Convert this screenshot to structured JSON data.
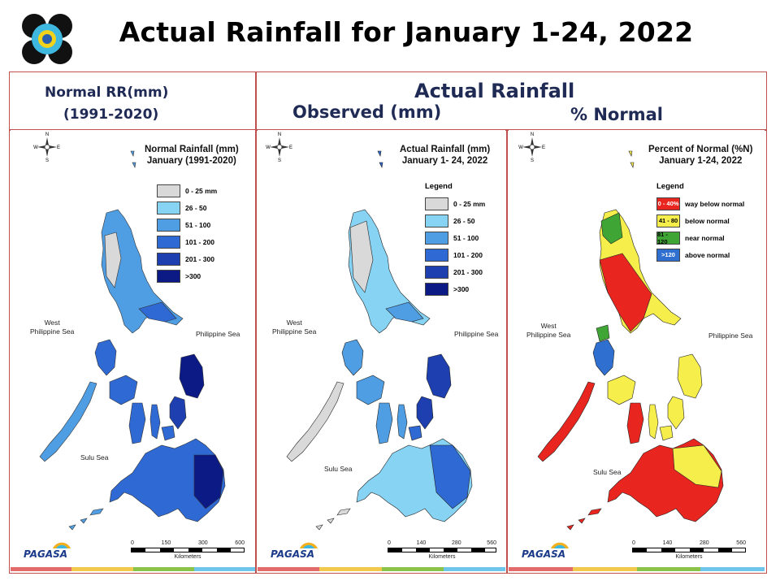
{
  "slide": {
    "title": "Actual Rainfall for January 1-24, 2022"
  },
  "header": {
    "left_line1": "Normal RR(mm)",
    "left_line2": "(1991-2020)",
    "right_title": "Actual Rainfall",
    "right_sub1": "Observed (mm)",
    "right_sub2": "% Normal"
  },
  "colors": {
    "frame_border": "#c0504d",
    "header_text": "#1f2a55"
  },
  "panels": [
    {
      "title_line1": "Normal Rainfall (mm)",
      "title_line2": "January (1991-2020)",
      "legend_heading": "",
      "legend": [
        {
          "label": "0 - 25 mm",
          "color": "#d9d9d9"
        },
        {
          "label": "26 - 50",
          "color": "#87d3f3"
        },
        {
          "label": "51 - 100",
          "color": "#4f9de2"
        },
        {
          "label": "101 - 200",
          "color": "#2f69d3"
        },
        {
          "label": "201 - 300",
          "color": "#1d3fb0"
        },
        {
          "label": ">300",
          "color": "#0c1a86"
        }
      ],
      "sea_west_1": "West",
      "sea_west_2": "Philippine Sea",
      "sea_east": "Philippine Sea",
      "sea_sulu": "Sulu Sea",
      "scale_ticks": [
        "0",
        "150",
        "300",
        "600"
      ],
      "scale_unit": "Kilometers"
    },
    {
      "title_line1": "Actual Rainfall (mm)",
      "title_line2": "January 1- 24, 2022",
      "legend_heading": "Legend",
      "legend": [
        {
          "label": "0 - 25 mm",
          "color": "#d9d9d9"
        },
        {
          "label": "26 - 50",
          "color": "#87d3f3"
        },
        {
          "label": "51 - 100",
          "color": "#4f9de2"
        },
        {
          "label": "101 - 200",
          "color": "#2f69d3"
        },
        {
          "label": "201 - 300",
          "color": "#1d3fb0"
        },
        {
          "label": ">300",
          "color": "#0c1a86"
        }
      ],
      "sea_west_1": "West",
      "sea_west_2": "Philippine Sea",
      "sea_east": "Philippine Sea",
      "sea_sulu": "Sulu Sea",
      "scale_ticks": [
        "0",
        "140",
        "280",
        "560"
      ],
      "scale_unit": "Kilometers"
    },
    {
      "title_line1": "Percent of Normal (%N)",
      "title_line2": "January 1-24, 2022",
      "legend_heading": "Legend",
      "legend": [
        {
          "swatch": "0 - 40%",
          "label": "way below normal",
          "color": "#e8261f"
        },
        {
          "swatch": "41 - 80",
          "label": "below normal",
          "color": "#f5ee4b"
        },
        {
          "swatch": "81 - 120",
          "label": "near normal",
          "color": "#3fa535"
        },
        {
          "swatch": ">120",
          "label": "above normal",
          "color": "#2f6fd0"
        }
      ],
      "sea_west_1": "West",
      "sea_west_2": "Philippine Sea",
      "sea_east": "Philippine Sea",
      "sea_sulu": "Sulu Sea",
      "scale_ticks": [
        "0",
        "140",
        "280",
        "560"
      ],
      "scale_unit": "Kilometers"
    }
  ],
  "branding": {
    "pagasa": "PAGASA"
  }
}
